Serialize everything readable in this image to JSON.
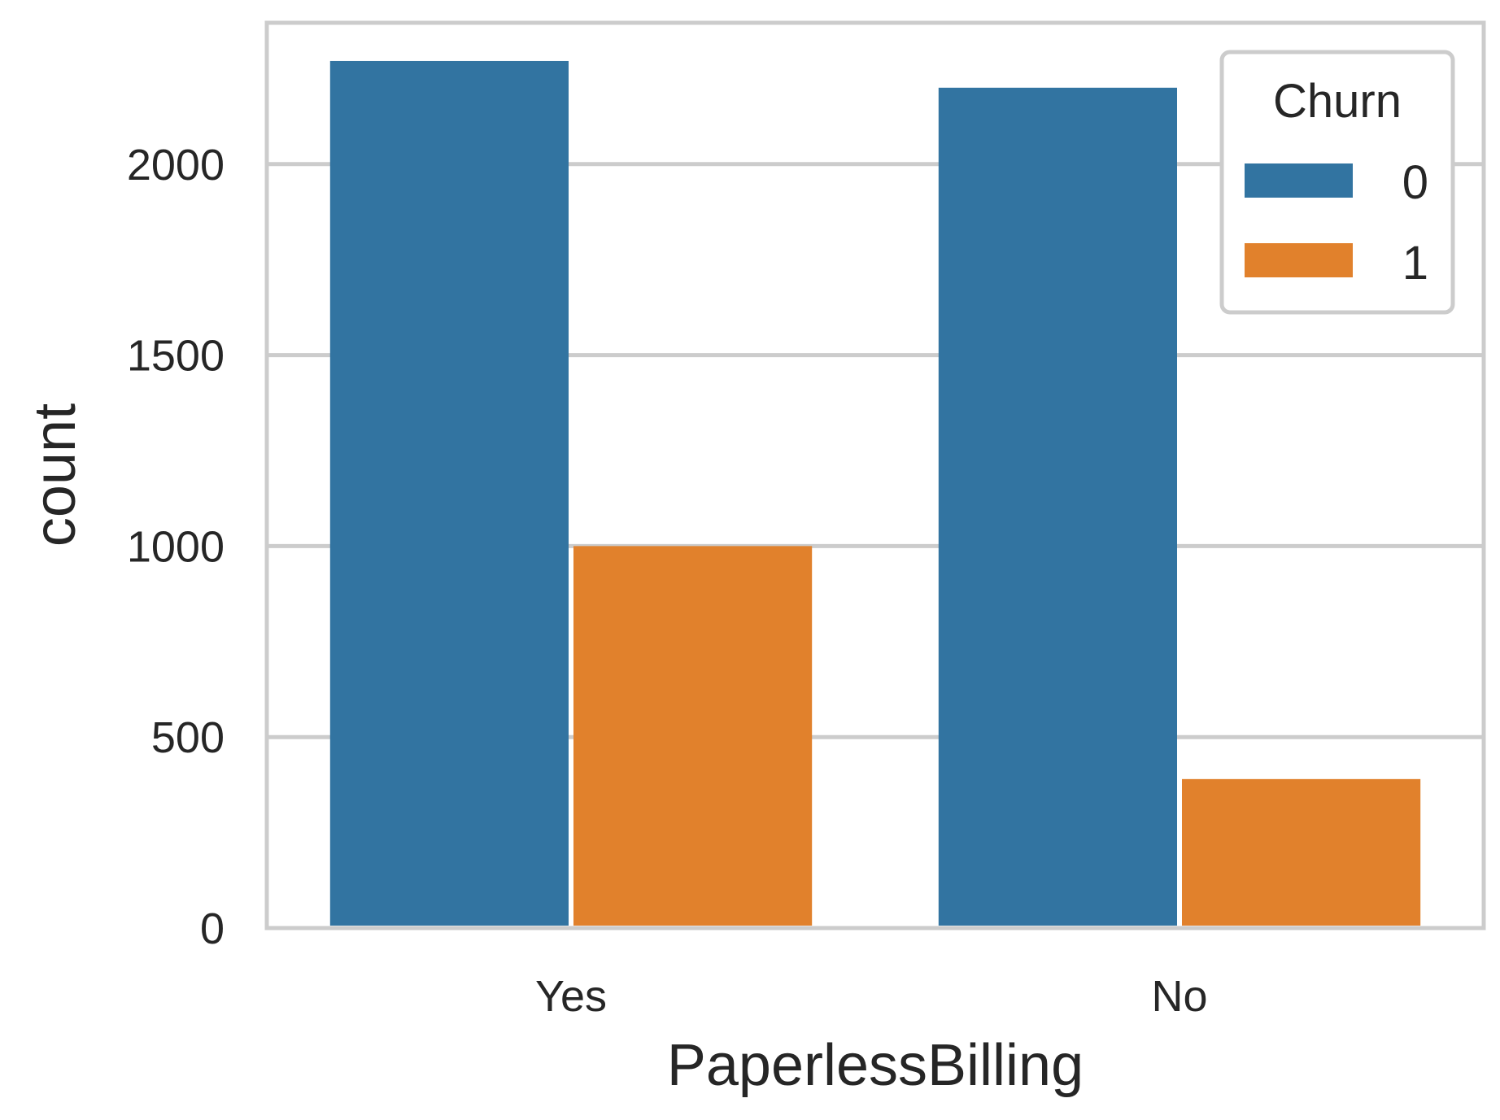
{
  "chart_data": {
    "type": "bar",
    "title": "",
    "xlabel": "PaperlessBilling",
    "ylabel": "count",
    "categories": [
      "Yes",
      "No"
    ],
    "ylim": [
      0,
      2370
    ],
    "yticks": [
      0,
      500,
      1000,
      1500,
      2000
    ],
    "ytick_labels": [
      "0",
      "500",
      "1000",
      "1500",
      "2000"
    ],
    "grid": true,
    "legend": {
      "title": "Churn",
      "position": "top-right"
    },
    "series": [
      {
        "name": "0",
        "color": "#3274a1",
        "values": [
          2270,
          2200
        ]
      },
      {
        "name": "1",
        "color": "#e1812c",
        "values": [
          1000,
          390
        ]
      }
    ]
  }
}
